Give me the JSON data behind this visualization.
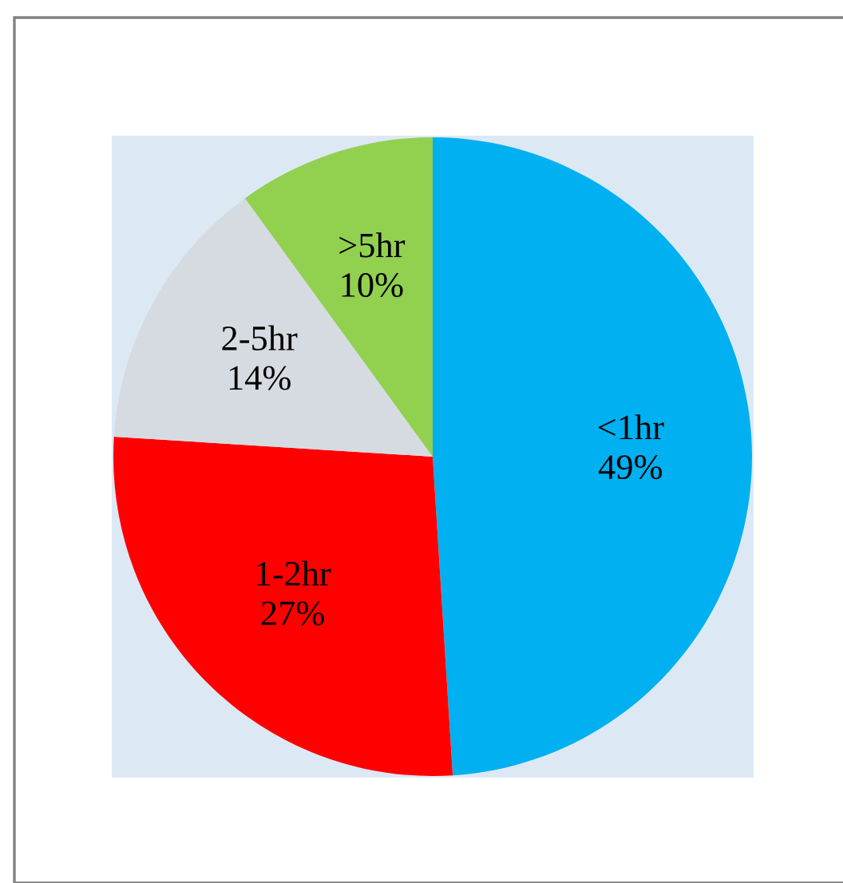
{
  "chart_data": {
    "type": "pie",
    "categories": [
      "<1hr",
      "1-2hr",
      "2-5hr",
      ">5hr"
    ],
    "values": [
      49,
      27,
      14,
      10
    ],
    "colors": [
      "#00b0f0",
      "#ff0000",
      "#d6dbe1",
      "#92d050"
    ],
    "value_labels": [
      "49%",
      "27%",
      "14%",
      "10%"
    ]
  }
}
